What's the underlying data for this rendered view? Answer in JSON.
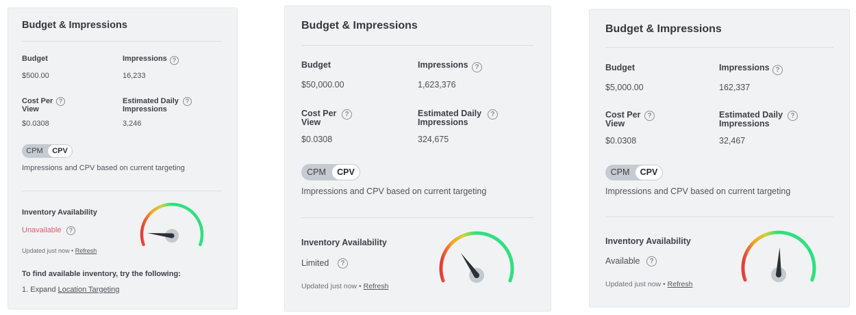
{
  "cards": [
    {
      "title": "Budget & Impressions",
      "budget_label": "Budget",
      "budget_value": "$500.00",
      "impressions_label": "Impressions",
      "impressions_value": "16,233",
      "cpv_label": "Cost Per View",
      "cpv_value": "$0.0308",
      "edi_label": "Estimated Daily Impressions",
      "edi_value": "3,246",
      "toggle": {
        "left": "CPM",
        "right": "CPV",
        "selected": "CPV"
      },
      "note": "Impressions and CPV based on current targeting",
      "inventory_label": "Inventory Availability",
      "inventory_status": "Unavailable",
      "inventory_status_color": "#e0576a",
      "gauge_level": 0.12,
      "updated_text": "Updated just now •",
      "refresh_label": "Refresh",
      "suggest_title": "To find available inventory, try the following:",
      "suggest_item_prefix": "1. Expand",
      "suggest_item_link": "Location Targeting"
    },
    {
      "title": "Budget & Impressions",
      "budget_label": "Budget",
      "budget_value": "$50,000.00",
      "impressions_label": "Impressions",
      "impressions_value": "1,623,376",
      "cpv_label": "Cost Per View",
      "cpv_value": "$0.0308",
      "edi_label": "Estimated Daily Impressions",
      "edi_value": "324,675",
      "toggle": {
        "left": "CPM",
        "right": "CPV",
        "selected": "CPV"
      },
      "note": "Impressions and CPV based on current targeting",
      "inventory_label": "Inventory Availability",
      "inventory_status": "Limited",
      "inventory_status_color": "#4f545a",
      "gauge_level": 0.34,
      "updated_text": "Updated just now •",
      "refresh_label": "Refresh"
    },
    {
      "title": "Budget & Impressions",
      "budget_label": "Budget",
      "budget_value": "$5,000.00",
      "impressions_label": "Impressions",
      "impressions_value": "162,337",
      "cpv_label": "Cost Per View",
      "cpv_value": "$0.0308",
      "edi_label": "Estimated Daily Impressions",
      "edi_value": "32,467",
      "toggle": {
        "left": "CPM",
        "right": "CPV",
        "selected": "CPV"
      },
      "note": "Impressions and CPV based on current targeting",
      "inventory_label": "Inventory Availability",
      "inventory_status": "Available",
      "inventory_status_color": "#4f545a",
      "gauge_level": 0.51,
      "updated_text": "Updated just now •",
      "refresh_label": "Refresh"
    }
  ],
  "icons": {
    "help": "question-circle-icon",
    "gauge": "availability-gauge"
  },
  "colors": {
    "gauge_red": "#e33b3b",
    "gauge_orange": "#f5a623",
    "gauge_yellow": "#c9d43a",
    "gauge_green": "#2fe07e",
    "needle": "#2b2f36",
    "hub": "#c4c8cf"
  }
}
